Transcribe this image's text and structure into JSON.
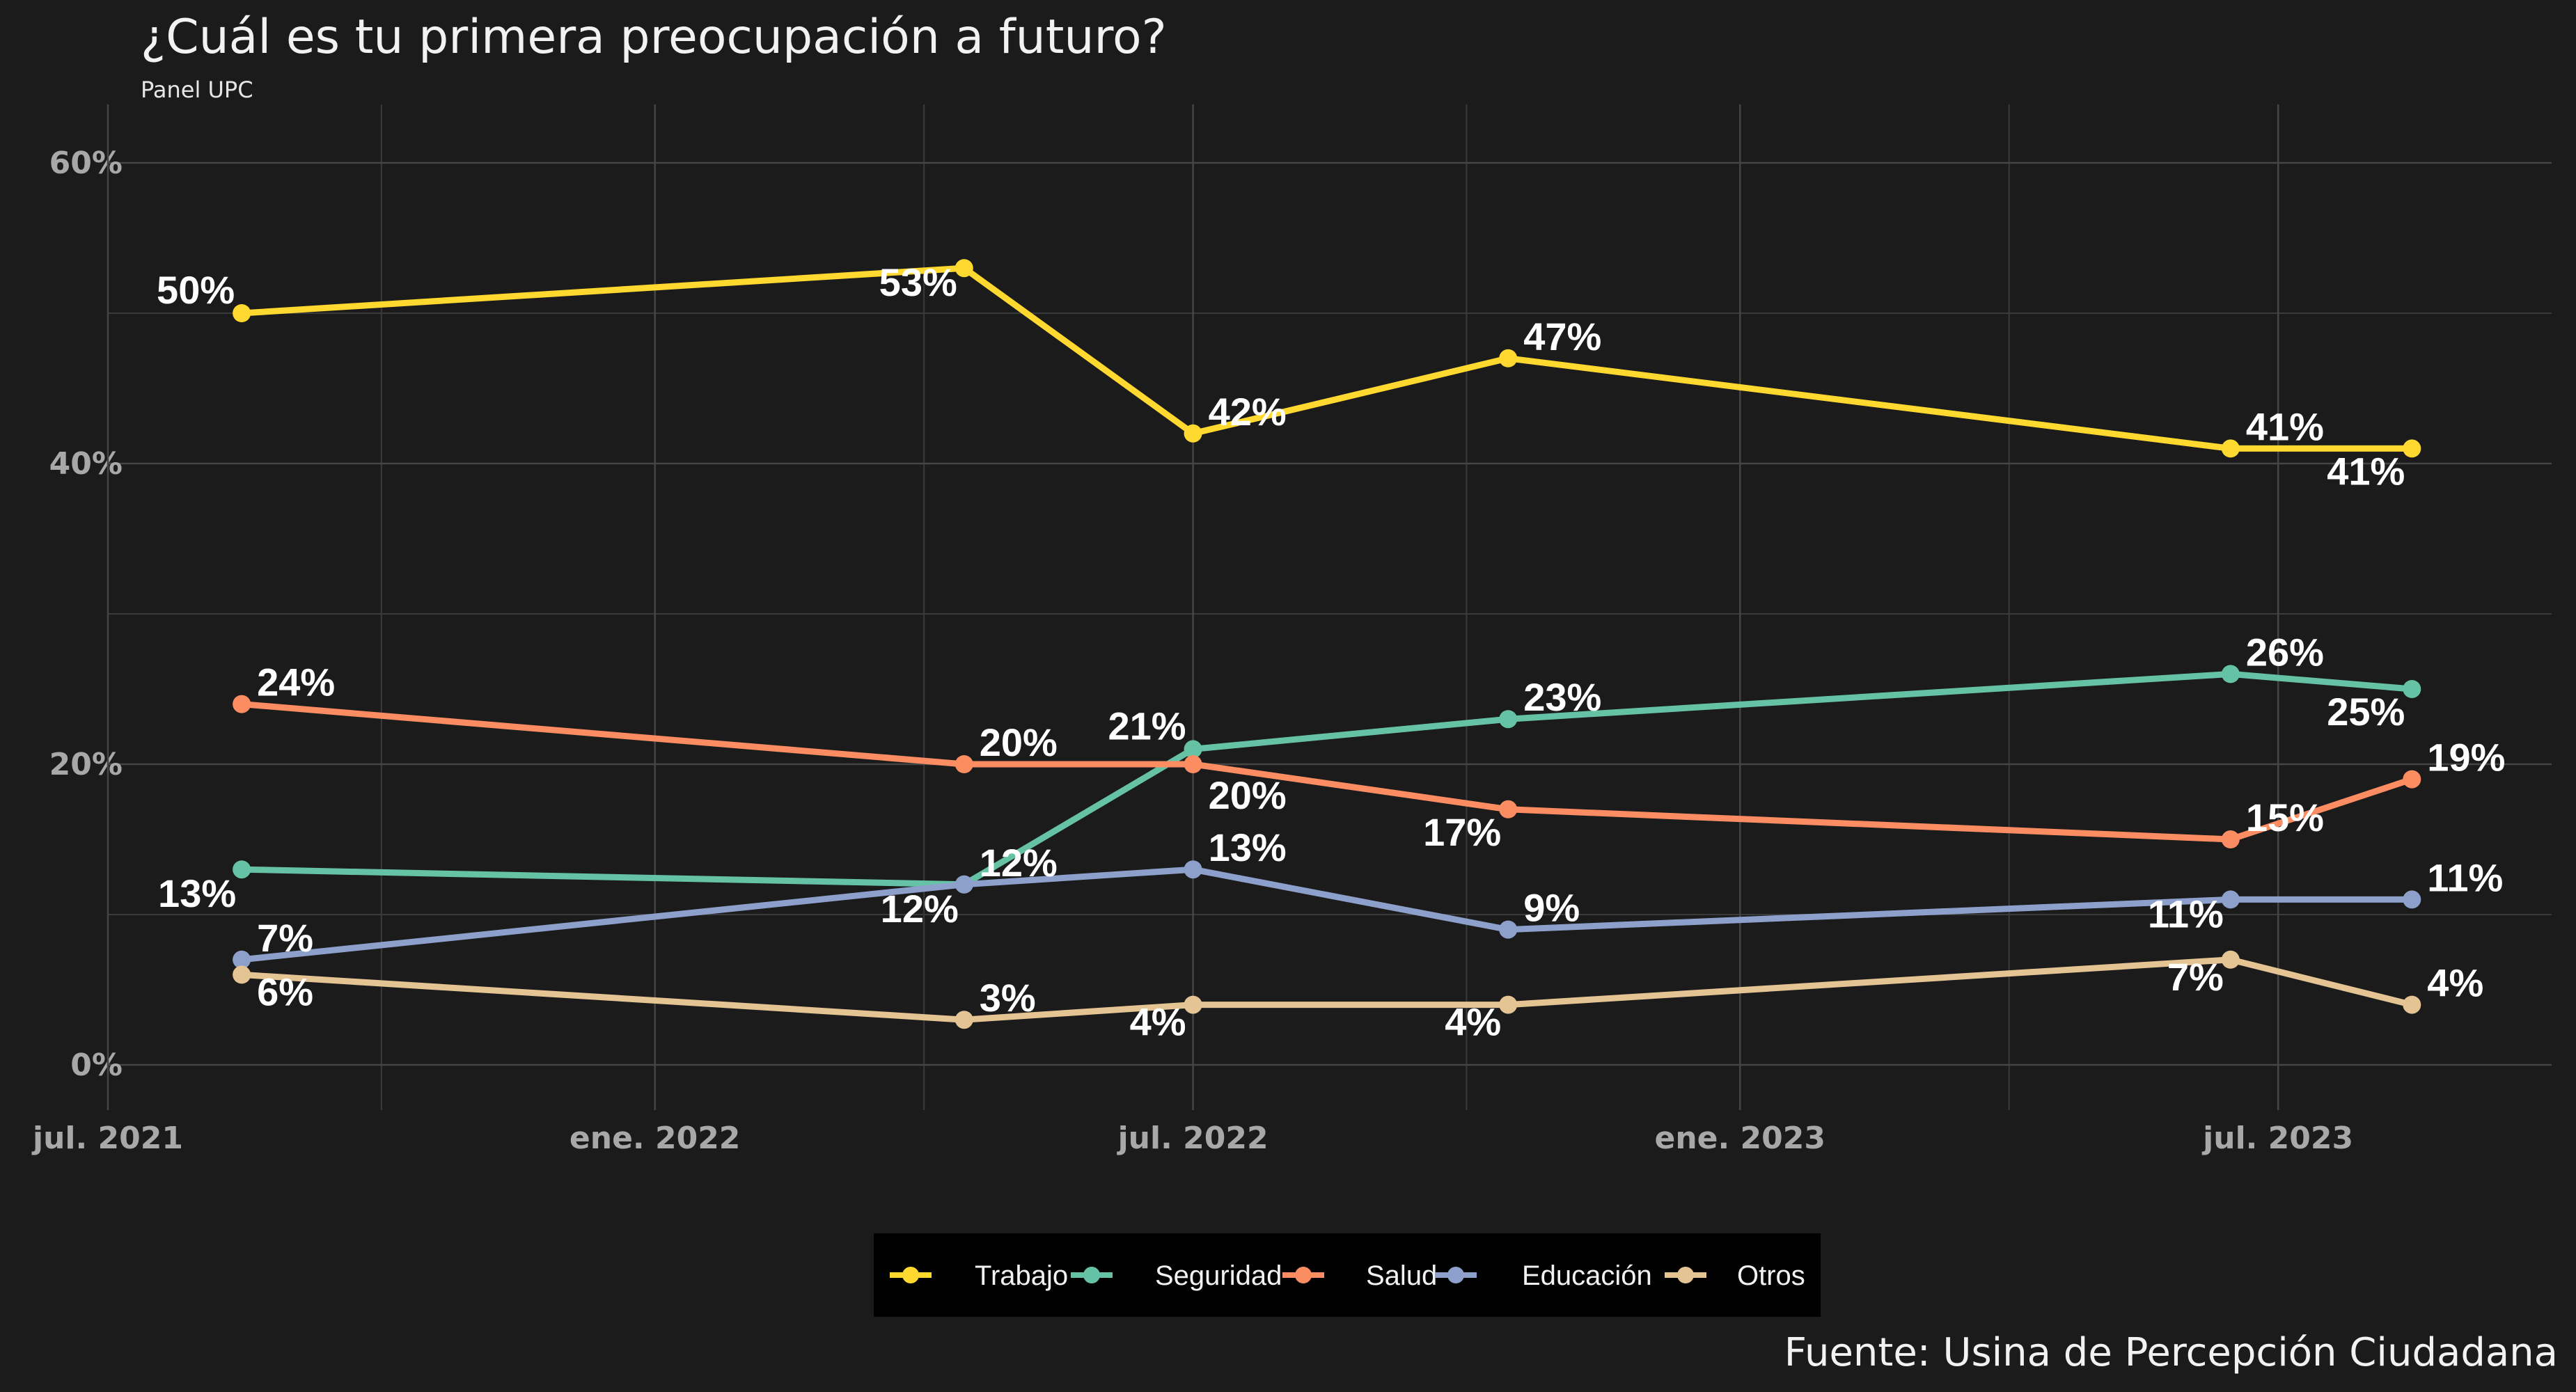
{
  "title": "¿Cuál es tu primera preocupación a futuro?",
  "subtitle": "Panel UPC",
  "caption": "Fuente: Usina de Percepción Ciudadana",
  "chart_data": {
    "type": "line",
    "title": "¿Cuál es tu primera preocupación a futuro?",
    "subtitle": "Panel UPC",
    "x": [
      "2021-08-15",
      "2022-04-15",
      "2022-07-01",
      "2022-10-15",
      "2023-06-15",
      "2023-08-15"
    ],
    "x_ticks": [
      {
        "date": "2021-07-01",
        "label": "jul. 2021"
      },
      {
        "date": "2022-01-01",
        "label": "ene. 2022"
      },
      {
        "date": "2022-07-01",
        "label": "jul. 2022"
      },
      {
        "date": "2023-01-01",
        "label": "ene. 2023"
      },
      {
        "date": "2023-07-01",
        "label": "jul. 2023"
      }
    ],
    "xlim": [
      "2021-07-01",
      "2023-10-01"
    ],
    "y_ticks": [
      {
        "value": 0,
        "label": "0%"
      },
      {
        "value": 20,
        "label": "20%"
      },
      {
        "value": 40,
        "label": "40%"
      },
      {
        "value": 60,
        "label": "60%"
      }
    ],
    "ylim": [
      0,
      60
    ],
    "grid": true,
    "legend_position": "bottom",
    "series": [
      {
        "name": "Trabajo",
        "color": "#FFD92F",
        "values": [
          50,
          53,
          42,
          47,
          41,
          41
        ],
        "labels": [
          "50%",
          "53%",
          "42%",
          "47%",
          "41%",
          "41%"
        ]
      },
      {
        "name": "Seguridad",
        "color": "#66C2A5",
        "values": [
          13,
          12,
          21,
          23,
          26,
          25
        ],
        "labels": [
          "13%",
          "12%",
          "21%",
          "23%",
          "26%",
          "25%"
        ]
      },
      {
        "name": "Salud",
        "color": "#FC8D62",
        "values": [
          24,
          20,
          20,
          17,
          15,
          19
        ],
        "labels": [
          "24%",
          "20%",
          "20%",
          "17%",
          "15%",
          "19%"
        ]
      },
      {
        "name": "Educación",
        "color": "#8DA0CB",
        "values": [
          7,
          12,
          13,
          9,
          11,
          11
        ],
        "labels": [
          "7%",
          "12%",
          "13%",
          "9%",
          "11%",
          "11%"
        ]
      },
      {
        "name": "Otros",
        "color": "#E5C494",
        "values": [
          6,
          3,
          4,
          4,
          7,
          4
        ],
        "labels": [
          "6%",
          "3%",
          "4%",
          "4%",
          "7%",
          "4%"
        ]
      }
    ]
  }
}
